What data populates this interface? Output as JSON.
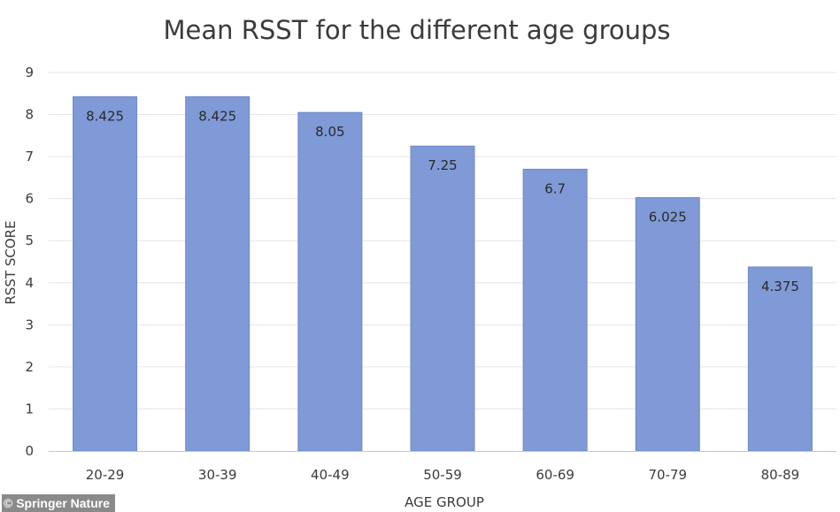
{
  "colors": {
    "bar": "#7f9ad6",
    "bar_stroke": "#6d89c8",
    "grid": "#e6e6e6",
    "axis": "#c8c8c8",
    "credit_bg": "#8a8a8a"
  },
  "credit": "© Springer Nature",
  "chart_data": {
    "type": "bar",
    "title": "Mean RSST for the different age groups",
    "xlabel": "AGE GROUP",
    "ylabel": "RSST SCORE",
    "categories": [
      "20-29",
      "30-39",
      "40-49",
      "50-59",
      "60-69",
      "70-79",
      "80-89"
    ],
    "values": [
      8.425,
      8.425,
      8.05,
      7.25,
      6.7,
      6.025,
      4.375
    ],
    "value_labels": [
      "8.425",
      "8.425",
      "8.05",
      "7.25",
      "6.7",
      "6.025",
      "4.375"
    ],
    "ylim": [
      0,
      9
    ],
    "yticks": [
      "0",
      "1",
      "2",
      "3",
      "4",
      "5",
      "6",
      "7",
      "8",
      "9"
    ],
    "grid": true,
    "legend": "none"
  }
}
